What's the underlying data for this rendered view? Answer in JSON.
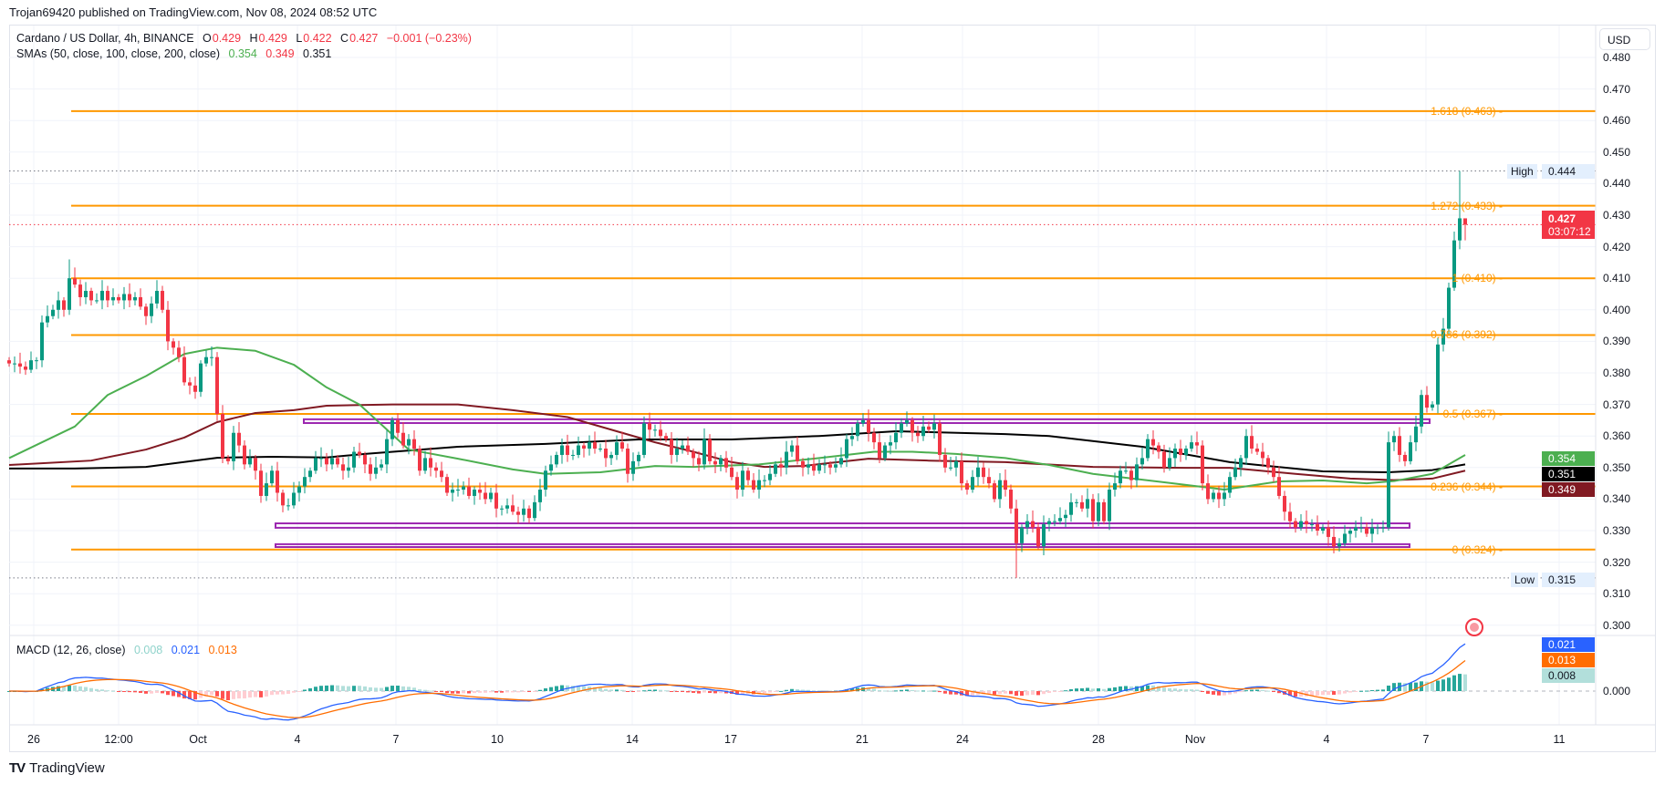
{
  "publisher_line": "Trojan69420 published on TradingView.com, Nov 08, 2024 08:52 UTC",
  "legend": {
    "symbol": "Cardano / US Dollar, 4h, BINANCE",
    "o_label": "O",
    "o": "0.429",
    "h_label": "H",
    "h": "0.429",
    "l_label": "L",
    "l": "0.422",
    "c_label": "C",
    "c": "0.427",
    "change": "−0.001 (−0.23%)"
  },
  "sma_legend": {
    "label": "SMAs (50, close, 100, close, 200, close)",
    "v50": "0.354",
    "v100": "0.349",
    "v200": "0.351"
  },
  "macd_legend": {
    "label": "MACD (12, 26, close)",
    "hist": "0.008",
    "macd": "0.021",
    "signal": "0.013"
  },
  "currency_button": "USD",
  "price_axis": {
    "ticks": [
      "0.480",
      "0.470",
      "0.460",
      "0.450",
      "0.440",
      "0.430",
      "0.420",
      "0.410",
      "0.400",
      "0.390",
      "0.380",
      "0.370",
      "0.360",
      "0.350",
      "0.340",
      "0.330",
      "0.320",
      "0.310",
      "0.300"
    ]
  },
  "macd_axis": {
    "zero": "0.000"
  },
  "time_axis": {
    "ticks": [
      "26",
      "12:00",
      "Oct",
      "4",
      "7",
      "10",
      "14",
      "17",
      "21",
      "24",
      "28",
      "Nov",
      "4",
      "7",
      "11"
    ]
  },
  "badges": {
    "high_label": "High",
    "high": "0.444",
    "low_label": "Low",
    "low": "0.315",
    "current_price": "0.427",
    "countdown": "03:07:12",
    "sma50": "0.354",
    "sma200": "0.351",
    "sma100": "0.349",
    "macd": "0.021",
    "signal": "0.013",
    "hist": "0.008"
  },
  "colors": {
    "up": "#089981",
    "down": "#f23645",
    "sma50": "#4caf50",
    "sma100": "#801922",
    "sma200": "#000000",
    "fib": "#ff9800",
    "zone": "#9c27b0",
    "macd": "#2962ff",
    "signal": "#ff6d00",
    "hist_up_strong": "#26a69a",
    "hist_up_weak": "#b2dfdb",
    "hist_down_strong": "#ff5252",
    "hist_down_weak": "#ffcdd2"
  },
  "footer": {
    "logo_text": "TradingView"
  },
  "chart_data": {
    "type": "candlestick",
    "interval": "4h",
    "y_range": [
      0.3,
      0.48
    ],
    "grid": true,
    "closes": [
      0.383,
      0.383,
      0.382,
      0.381,
      0.384,
      0.384,
      0.396,
      0.398,
      0.4,
      0.403,
      0.4,
      0.41,
      0.408,
      0.404,
      0.406,
      0.403,
      0.403,
      0.406,
      0.403,
      0.404,
      0.403,
      0.405,
      0.403,
      0.404,
      0.401,
      0.398,
      0.402,
      0.406,
      0.4,
      0.39,
      0.388,
      0.385,
      0.377,
      0.376,
      0.374,
      0.383,
      0.385,
      0.385,
      0.367,
      0.353,
      0.352,
      0.361,
      0.357,
      0.351,
      0.353,
      0.349,
      0.341,
      0.345,
      0.349,
      0.342,
      0.338,
      0.338,
      0.342,
      0.344,
      0.347,
      0.349,
      0.353,
      0.353,
      0.351,
      0.353,
      0.351,
      0.349,
      0.35,
      0.355,
      0.354,
      0.351,
      0.348,
      0.35,
      0.351,
      0.359,
      0.365,
      0.361,
      0.357,
      0.359,
      0.356,
      0.349,
      0.353,
      0.35,
      0.349,
      0.347,
      0.342,
      0.343,
      0.343,
      0.344,
      0.341,
      0.343,
      0.342,
      0.34,
      0.342,
      0.337,
      0.337,
      0.338,
      0.336,
      0.335,
      0.337,
      0.334,
      0.339,
      0.343,
      0.349,
      0.351,
      0.354,
      0.357,
      0.354,
      0.354,
      0.357,
      0.356,
      0.358,
      0.356,
      0.356,
      0.353,
      0.354,
      0.358,
      0.356,
      0.348,
      0.352,
      0.354,
      0.364,
      0.362,
      0.362,
      0.36,
      0.359,
      0.354,
      0.356,
      0.357,
      0.355,
      0.353,
      0.351,
      0.359,
      0.352,
      0.351,
      0.353,
      0.35,
      0.347,
      0.343,
      0.349,
      0.346,
      0.343,
      0.346,
      0.346,
      0.348,
      0.351,
      0.35,
      0.355,
      0.357,
      0.352,
      0.35,
      0.351,
      0.349,
      0.351,
      0.351,
      0.35,
      0.351,
      0.353,
      0.359,
      0.36,
      0.364,
      0.365,
      0.361,
      0.358,
      0.353,
      0.357,
      0.358,
      0.361,
      0.364,
      0.365,
      0.361,
      0.36,
      0.363,
      0.362,
      0.364,
      0.354,
      0.35,
      0.35,
      0.352,
      0.345,
      0.343,
      0.347,
      0.35,
      0.347,
      0.345,
      0.34,
      0.346,
      0.343,
      0.337,
      0.326,
      0.331,
      0.333,
      0.331,
      0.325,
      0.332,
      0.333,
      0.333,
      0.334,
      0.335,
      0.339,
      0.339,
      0.337,
      0.34,
      0.333,
      0.339,
      0.333,
      0.343,
      0.345,
      0.349,
      0.349,
      0.346,
      0.351,
      0.353,
      0.359,
      0.357,
      0.355,
      0.35,
      0.353,
      0.356,
      0.354,
      0.356,
      0.358,
      0.357,
      0.345,
      0.34,
      0.342,
      0.34,
      0.342,
      0.347,
      0.35,
      0.353,
      0.36,
      0.356,
      0.355,
      0.353,
      0.35,
      0.347,
      0.341,
      0.336,
      0.333,
      0.331,
      0.333,
      0.332,
      0.332,
      0.33,
      0.331,
      0.328,
      0.325,
      0.326,
      0.329,
      0.33,
      0.331,
      0.331,
      0.329,
      0.331,
      0.331,
      0.331,
      0.358,
      0.36,
      0.354,
      0.352,
      0.358,
      0.363,
      0.373,
      0.369,
      0.37,
      0.389,
      0.394,
      0.407,
      0.422,
      0.429,
      0.427
    ],
    "last_candle": {
      "open": 0.429,
      "high": 0.429,
      "low": 0.422,
      "close": 0.427
    },
    "extremes": {
      "high": 0.444,
      "low": 0.315
    },
    "sma50": [
      [
        0,
        0.353
      ],
      [
        12,
        0.363
      ],
      [
        18,
        0.373
      ],
      [
        25,
        0.379
      ],
      [
        32,
        0.386
      ],
      [
        38,
        0.388
      ],
      [
        45,
        0.387
      ],
      [
        52,
        0.3826
      ],
      [
        58,
        0.3754
      ],
      [
        64,
        0.37
      ],
      [
        73,
        0.3557
      ],
      [
        82,
        0.3528
      ],
      [
        92,
        0.3494
      ],
      [
        98,
        0.348
      ],
      [
        108,
        0.3485
      ],
      [
        118,
        0.3505
      ],
      [
        125,
        0.3502
      ],
      [
        137,
        0.351
      ],
      [
        148,
        0.353
      ],
      [
        158,
        0.355
      ],
      [
        165,
        0.355
      ],
      [
        173,
        0.3543
      ],
      [
        182,
        0.353
      ],
      [
        190,
        0.3508
      ],
      [
        198,
        0.348
      ],
      [
        215,
        0.3445
      ],
      [
        222,
        0.343
      ],
      [
        232,
        0.3456
      ],
      [
        240,
        0.3459
      ],
      [
        248,
        0.345
      ],
      [
        253,
        0.3457
      ],
      [
        260,
        0.348
      ],
      [
        266,
        0.354
      ]
    ],
    "sma100": [
      [
        0,
        0.3508
      ],
      [
        15,
        0.3522
      ],
      [
        25,
        0.3557
      ],
      [
        32,
        0.3595
      ],
      [
        38,
        0.3644
      ],
      [
        45,
        0.3673
      ],
      [
        52,
        0.3682
      ],
      [
        58,
        0.3696
      ],
      [
        70,
        0.37
      ],
      [
        82,
        0.37
      ],
      [
        92,
        0.3682
      ],
      [
        102,
        0.366
      ],
      [
        112,
        0.361
      ],
      [
        118,
        0.358
      ],
      [
        125,
        0.355
      ],
      [
        132,
        0.3517
      ],
      [
        138,
        0.3502
      ],
      [
        145,
        0.3505
      ],
      [
        157,
        0.3528
      ],
      [
        168,
        0.3522
      ],
      [
        182,
        0.3517
      ],
      [
        198,
        0.3502
      ],
      [
        215,
        0.3499
      ],
      [
        223,
        0.3499
      ],
      [
        235,
        0.348
      ],
      [
        245,
        0.3465
      ],
      [
        253,
        0.346
      ],
      [
        260,
        0.3465
      ],
      [
        266,
        0.349
      ]
    ],
    "sma200": [
      [
        0,
        0.3497
      ],
      [
        12,
        0.3497
      ],
      [
        25,
        0.3502
      ],
      [
        38,
        0.3531
      ],
      [
        48,
        0.3534
      ],
      [
        58,
        0.3532
      ],
      [
        65,
        0.3543
      ],
      [
        82,
        0.3566
      ],
      [
        98,
        0.3575
      ],
      [
        115,
        0.3589
      ],
      [
        132,
        0.3589
      ],
      [
        148,
        0.36
      ],
      [
        162,
        0.3615
      ],
      [
        182,
        0.3606
      ],
      [
        190,
        0.36
      ],
      [
        207,
        0.3566
      ],
      [
        223,
        0.3517
      ],
      [
        240,
        0.3488
      ],
      [
        252,
        0.3485
      ],
      [
        260,
        0.3492
      ],
      [
        266,
        0.351
      ]
    ],
    "fib_levels": [
      {
        "ratio": "1.618",
        "price": 0.463
      },
      {
        "ratio": "1.272",
        "price": 0.433
      },
      {
        "ratio": "1",
        "price": 0.41
      },
      {
        "ratio": "0.786",
        "price": 0.392
      },
      {
        "ratio": "0.5",
        "price": 0.367
      },
      {
        "ratio": "0.236",
        "price": 0.344
      },
      {
        "ratio": "0",
        "price": 0.324
      }
    ],
    "zones": [
      {
        "top": 0.3653,
        "bottom": 0.3641
      },
      {
        "top": 0.3323,
        "bottom": 0.3309
      },
      {
        "top": 0.3257,
        "bottom": 0.3248
      }
    ]
  }
}
